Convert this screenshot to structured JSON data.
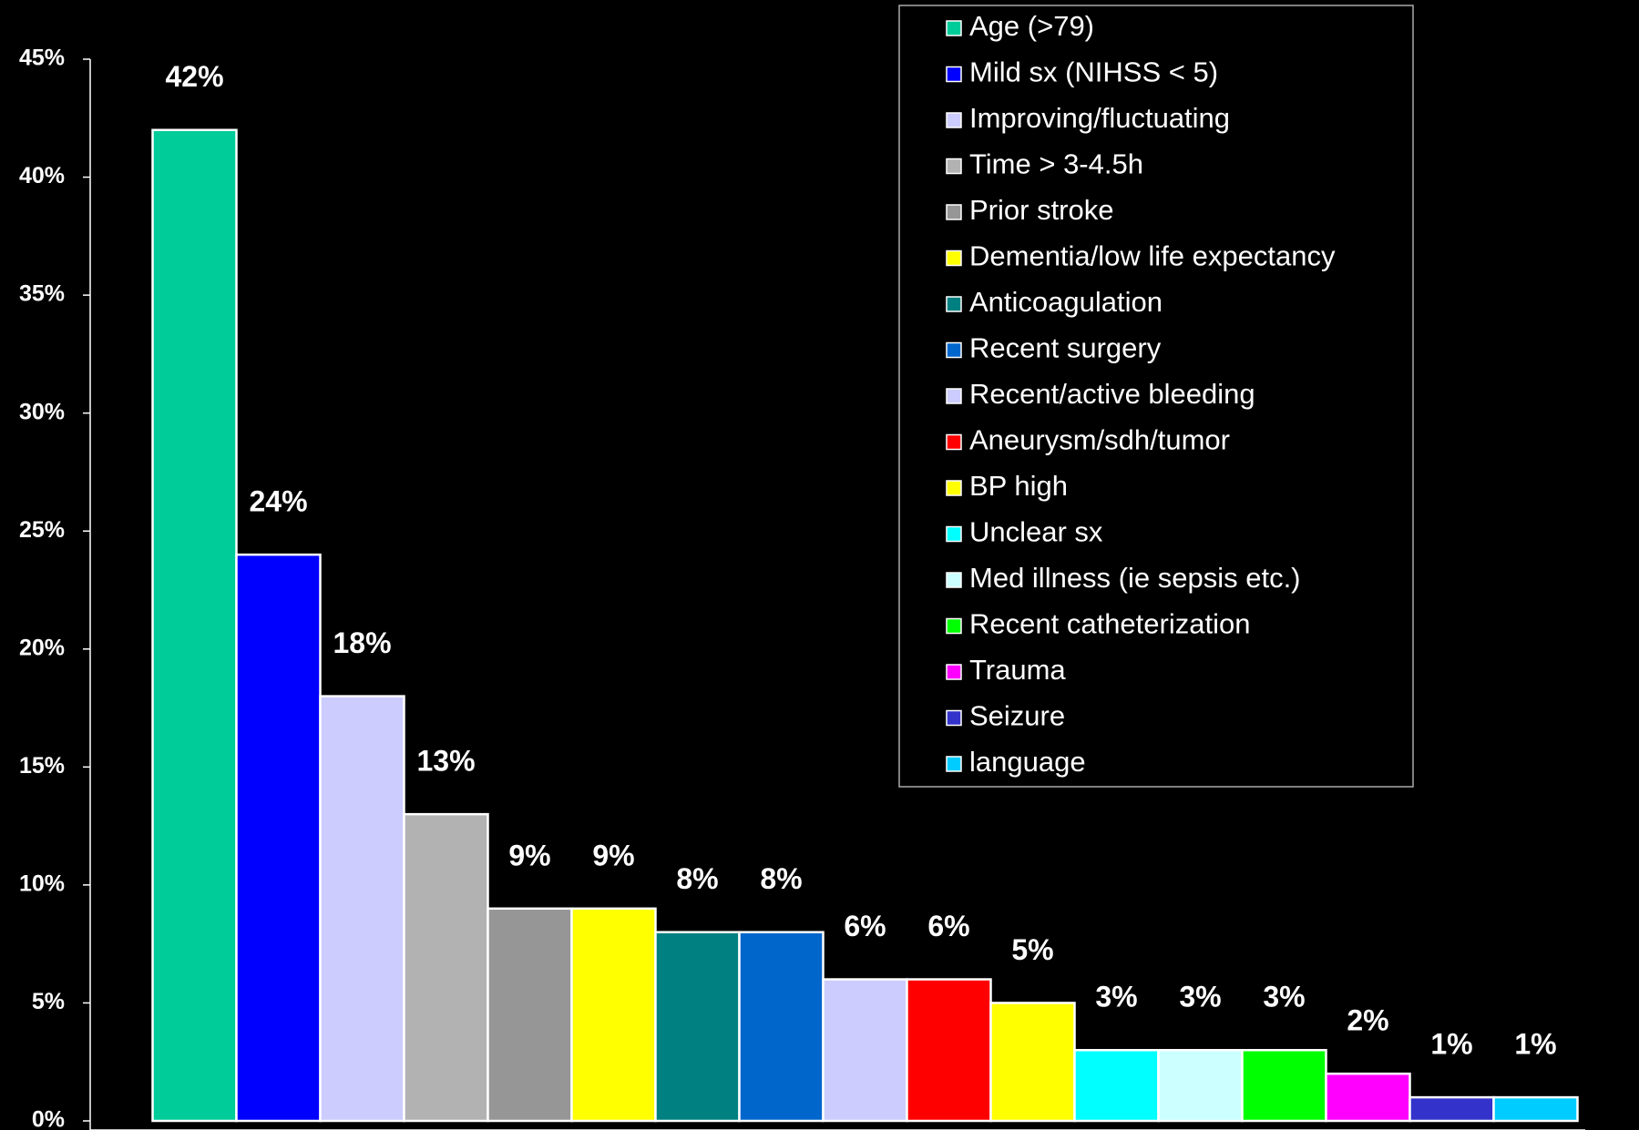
{
  "chart_data": {
    "type": "bar",
    "categories": [
      "Age (>79)",
      "Mild sx (NIHSS < 5)",
      "Improving/fluctuating",
      "Time > 3-4.5h",
      "Prior stroke",
      "Dementia/low life expectancy",
      "Anticoagulation",
      "Recent surgery",
      "Recent/active bleeding",
      "Aneurysm/sdh/tumor",
      "BP high",
      "Unclear sx",
      "Med illness (ie sepsis etc.)",
      "Recent catheterization",
      "Trauma",
      "Seizure",
      "language"
    ],
    "values": [
      42,
      24,
      18,
      13,
      9,
      9,
      8,
      8,
      6,
      6,
      5,
      3,
      3,
      3,
      2,
      1,
      1
    ],
    "value_labels": [
      "42%",
      "24%",
      "18%",
      "13%",
      "9%",
      "9%",
      "8%",
      "8%",
      "6%",
      "6%",
      "5%",
      "3%",
      "3%",
      "3%",
      "2%",
      "1%",
      "1%"
    ],
    "colors": [
      "#00cc99",
      "#0000ff",
      "#ccccff",
      "#b2b2b2",
      "#969696",
      "#ffff00",
      "#008080",
      "#0066cc",
      "#ccccff",
      "#ff0000",
      "#ffff00",
      "#00ffff",
      "#ccffff",
      "#00ff00",
      "#ff00ff",
      "#3333cc",
      "#00ccff"
    ],
    "ylim": [
      0,
      45
    ],
    "yticks": [
      {
        "value": 0,
        "label": "0%"
      },
      {
        "value": 5,
        "label": "5%"
      },
      {
        "value": 10,
        "label": "10%"
      },
      {
        "value": 15,
        "label": "15%"
      },
      {
        "value": 20,
        "label": "20%"
      },
      {
        "value": 25,
        "label": "25%"
      },
      {
        "value": 30,
        "label": "30%"
      },
      {
        "value": 35,
        "label": "35%"
      },
      {
        "value": 40,
        "label": "40%"
      },
      {
        "value": 45,
        "label": "45%"
      }
    ],
    "legend": "top-right"
  }
}
